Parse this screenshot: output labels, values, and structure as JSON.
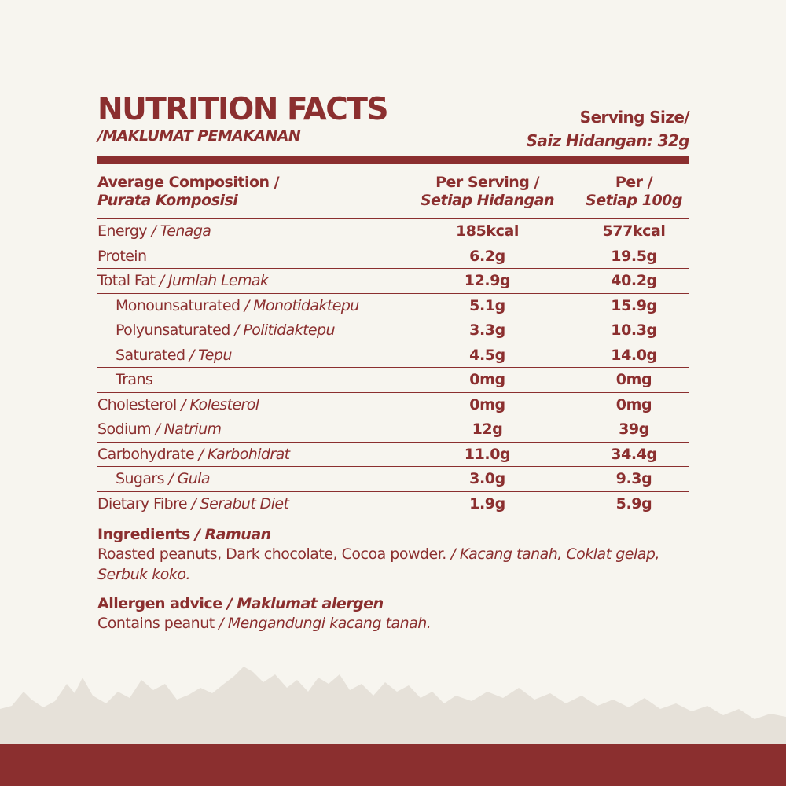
{
  "header": {
    "title": "NUTRITION FACTS",
    "subtitle": "/MAKLUMAT PEMAKANAN",
    "serving_line1": "Serving Size/",
    "serving_line2": "Saiz Hidangan: 32g"
  },
  "table": {
    "col1_en": "Average Composition /",
    "col1_my": "Purata Komposisi",
    "col2_en": "Per Serving /",
    "col2_my": "Setiap Hidangan",
    "col3_en": "Per /",
    "col3_my": "Setiap 100g",
    "rows": [
      {
        "en": "Energy",
        "my": "/ Tenaga",
        "serving": "185kcal",
        "per100": "577kcal"
      },
      {
        "en": "Protein",
        "my": "",
        "serving": "6.2g",
        "per100": "19.5g"
      },
      {
        "en": "Total Fat",
        "my": "/ Jumlah Lemak",
        "serving": "12.9g",
        "per100": "40.2g"
      },
      {
        "en": "Monounsaturated",
        "my": "/ Monotidaktepu",
        "serving": "5.1g",
        "per100": "15.9g"
      },
      {
        "en": "Polyunsaturated",
        "my": "/ Politidaktepu",
        "serving": "3.3g",
        "per100": "10.3g"
      },
      {
        "en": "Saturated",
        "my": "/ Tepu",
        "serving": "4.5g",
        "per100": "14.0g"
      },
      {
        "en": "Trans",
        "my": "",
        "serving": "0mg",
        "per100": "0mg"
      },
      {
        "en": "Cholesterol",
        "my": "/ Kolesterol",
        "serving": "0mg",
        "per100": "0mg"
      },
      {
        "en": "Sodium",
        "my": "/ Natrium",
        "serving": "12g",
        "per100": "39g"
      },
      {
        "en": "Carbohydrate",
        "my": "/ Karbohidrat",
        "serving": "11.0g",
        "per100": "34.4g"
      },
      {
        "en": "Sugars",
        "my": "/ Gula",
        "serving": "3.0g",
        "per100": "9.3g"
      },
      {
        "en": "Dietary Fibre",
        "my": "/ Serabut Diet",
        "serving": "1.9g",
        "per100": "5.9g"
      }
    ]
  },
  "ingredients": {
    "heading_en": "Ingredients",
    "heading_my": "/ Ramuan",
    "text_en": "Roasted peanuts, Dark chocolate, Cocoa powder.",
    "text_my": "/ Kacang tanah, Coklat gelap, Serbuk koko."
  },
  "allergen": {
    "heading_en": "Allergen advice",
    "heading_my": "/ Maklumat alergen",
    "text_en": "Contains peanut",
    "text_my": "/ Mengandungi kacang tanah."
  },
  "colors": {
    "accent": "#8b2f2f",
    "background": "#f7f5ef",
    "mountains": "#e6e1d9"
  }
}
